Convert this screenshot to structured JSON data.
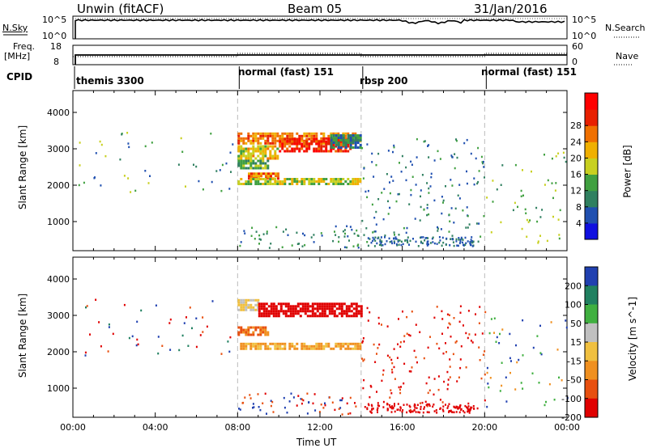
{
  "header": {
    "radar": "Unwin (fitACF)",
    "beam": "Beam 05",
    "date": "31/Jan/2016"
  },
  "top_panels": {
    "nsky_label": "N.Sky",
    "nsky_ticks": [
      "10^5",
      "10^0"
    ],
    "nsearch_label": "N.Search",
    "nsearch_ticks": [
      "10^5",
      "10^0"
    ],
    "freq_label": "Freq.",
    "freq_unit": "[MHz]",
    "freq_ticks": [
      "18",
      "8"
    ],
    "nave_label": "Nave",
    "nave_ticks": [
      "60",
      "0"
    ],
    "cpid_label": "CPID"
  },
  "cpid_segments": [
    {
      "label": "themis 3300",
      "start_h": 0,
      "end_h": 8
    },
    {
      "label": "normal (fast) 151",
      "start_h": 8,
      "end_h": 14
    },
    {
      "label": "rbsp 200",
      "start_h": 14,
      "end_h": 20
    },
    {
      "label": "normal (fast) 151",
      "start_h": 20,
      "end_h": 24
    }
  ],
  "colors": {
    "power": [
      "#1010e0",
      "#2050b0",
      "#308060",
      "#40a040",
      "#c8d020",
      "#f0b000",
      "#f07000",
      "#e82000",
      "#ff0000"
    ],
    "velocity": [
      "#2040b0",
      "#208060",
      "#40b040",
      "#c0c0c0",
      "#f0c040",
      "#f09020",
      "#e85010",
      "#e00000"
    ]
  },
  "chart_data": [
    {
      "type": "heatmap",
      "title": "Power",
      "xlabel": "Time UT",
      "ylabel": "Slant Range [km]",
      "x_ticks": [
        "00:00",
        "04:00",
        "08:00",
        "12:00",
        "16:00",
        "20:00",
        "00:00"
      ],
      "xlim_hours": [
        0,
        24
      ],
      "ylim_km": [
        200,
        4600
      ],
      "y_ticks": [
        1000,
        2000,
        3000,
        4000
      ],
      "colorbar": {
        "label": "Power [dB]",
        "ticks": [
          "4",
          "8",
          "12",
          "16",
          "20",
          "24",
          "28"
        ],
        "range": [
          0,
          32
        ]
      },
      "regions": [
        {
          "t": [
            8.0,
            14.0
          ],
          "r": [
            3150,
            3450
          ],
          "level": 26
        },
        {
          "t": [
            10.0,
            13.5
          ],
          "r": [
            2950,
            3300
          ],
          "level": 30
        },
        {
          "t": [
            8.0,
            10.0
          ],
          "r": [
            2700,
            3100
          ],
          "level": 20
        },
        {
          "t": [
            8.0,
            9.5
          ],
          "r": [
            2450,
            2700
          ],
          "level": 14
        },
        {
          "t": [
            8.5,
            10.0
          ],
          "r": [
            2150,
            2350
          ],
          "level": 26
        },
        {
          "t": [
            8.0,
            14.0
          ],
          "r": [
            2050,
            2200
          ],
          "level": 18
        },
        {
          "t": [
            12.5,
            14.0
          ],
          "r": [
            3000,
            3400
          ],
          "level": 10
        }
      ],
      "scatter": [
        {
          "t": [
            0.2,
            8.0
          ],
          "r": [
            1800,
            3500
          ],
          "n": 45,
          "levels": [
            4,
            8,
            12,
            16
          ]
        },
        {
          "t": [
            14.0,
            20.0
          ],
          "r": [
            400,
            3300
          ],
          "n": 160,
          "levels": [
            4,
            6,
            8,
            12
          ]
        },
        {
          "t": [
            14.3,
            19.5
          ],
          "r": [
            350,
            600
          ],
          "n": 120,
          "levels": [
            4,
            6,
            8
          ]
        },
        {
          "t": [
            20.0,
            24.0
          ],
          "r": [
            400,
            3000
          ],
          "n": 50,
          "levels": [
            8,
            12,
            16
          ]
        },
        {
          "t": [
            8.0,
            14.0
          ],
          "r": [
            300,
            900
          ],
          "n": 60,
          "levels": [
            4,
            8,
            12
          ]
        }
      ]
    },
    {
      "type": "heatmap",
      "title": "Velocity",
      "xlabel": "Time UT",
      "ylabel": "Slant Range [km]",
      "x_ticks": [
        "00:00",
        "04:00",
        "08:00",
        "12:00",
        "16:00",
        "20:00",
        "00:00"
      ],
      "xlim_hours": [
        0,
        24
      ],
      "ylim_km": [
        200,
        4600
      ],
      "y_ticks": [
        1000,
        2000,
        3000,
        4000
      ],
      "colorbar": {
        "label": "Velocity [m s^-1]",
        "ticks": [
          "200",
          "100",
          "50",
          "15",
          "-15",
          "-50",
          "-100",
          "-200"
        ],
        "range": [
          -250,
          250
        ]
      },
      "regions": [
        {
          "t": [
            8.0,
            9.0
          ],
          "r": [
            3150,
            3450
          ],
          "level": 0
        },
        {
          "t": [
            9.0,
            14.0
          ],
          "r": [
            2950,
            3350
          ],
          "level": -220
        },
        {
          "t": [
            8.0,
            9.5
          ],
          "r": [
            2450,
            2700
          ],
          "level": -80
        },
        {
          "t": [
            8.0,
            14.0
          ],
          "r": [
            2050,
            2250
          ],
          "level": -40
        }
      ],
      "scatter": [
        {
          "t": [
            0.2,
            8.0
          ],
          "r": [
            1800,
            3500
          ],
          "n": 45,
          "levels": [
            -200,
            -80,
            120,
            200
          ]
        },
        {
          "t": [
            14.0,
            20.0
          ],
          "r": [
            400,
            3300
          ],
          "n": 160,
          "levels": [
            -200,
            -220,
            -120
          ]
        },
        {
          "t": [
            14.3,
            19.5
          ],
          "r": [
            350,
            600
          ],
          "n": 120,
          "levels": [
            -220,
            -200
          ]
        },
        {
          "t": [
            20.0,
            24.0
          ],
          "r": [
            400,
            3000
          ],
          "n": 50,
          "levels": [
            -50,
            50,
            150
          ]
        },
        {
          "t": [
            8.0,
            14.0
          ],
          "r": [
            300,
            900
          ],
          "n": 60,
          "levels": [
            -200,
            200,
            -80
          ]
        }
      ]
    }
  ]
}
